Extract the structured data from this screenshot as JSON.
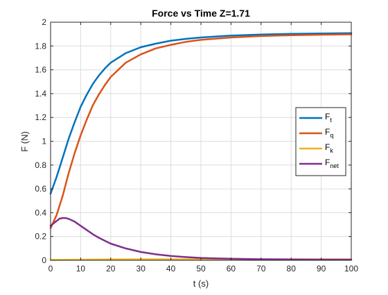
{
  "chart_data": {
    "type": "line",
    "title": "Force vs Time Z=1.71",
    "xlabel": "t (s)",
    "ylabel": "F (N)",
    "xlim": [
      0,
      100
    ],
    "ylim": [
      0,
      2
    ],
    "xticks": [
      0,
      10,
      20,
      30,
      40,
      50,
      60,
      70,
      80,
      90,
      100
    ],
    "yticks": [
      0,
      0.2,
      0.4,
      0.6,
      0.8,
      1,
      1.2,
      1.4,
      1.6,
      1.8,
      2
    ],
    "grid": true,
    "legend_position": "right",
    "series": [
      {
        "name": "F",
        "subscript": "t",
        "color": "#0072BD",
        "x": [
          0,
          2,
          4,
          6,
          8,
          10,
          12,
          14,
          16,
          18,
          20,
          25,
          30,
          35,
          40,
          45,
          50,
          60,
          70,
          80,
          90,
          100
        ],
        "y": [
          0.56,
          0.7,
          0.86,
          1.02,
          1.16,
          1.29,
          1.39,
          1.48,
          1.55,
          1.61,
          1.66,
          1.74,
          1.79,
          1.82,
          1.845,
          1.86,
          1.872,
          1.888,
          1.897,
          1.902,
          1.905,
          1.908
        ]
      },
      {
        "name": "F",
        "subscript": "q",
        "color": "#D95319",
        "x": [
          0,
          2,
          4,
          6,
          8,
          10,
          12,
          14,
          16,
          18,
          20,
          25,
          30,
          35,
          40,
          45,
          50,
          60,
          70,
          80,
          90,
          100
        ],
        "y": [
          0.27,
          0.38,
          0.54,
          0.73,
          0.9,
          1.05,
          1.18,
          1.3,
          1.39,
          1.47,
          1.54,
          1.66,
          1.73,
          1.78,
          1.81,
          1.835,
          1.852,
          1.872,
          1.884,
          1.891,
          1.895,
          1.898
        ]
      },
      {
        "name": "F",
        "subscript": "k",
        "color": "#EDB120",
        "x": [
          0,
          10,
          20,
          30,
          40,
          50,
          60,
          70,
          80,
          90,
          100
        ],
        "y": [
          0.003,
          0.005,
          0.007,
          0.008,
          0.008,
          0.008,
          0.008,
          0.008,
          0.008,
          0.008,
          0.008
        ]
      },
      {
        "name": "F",
        "subscript": "net",
        "color": "#7E2F8E",
        "x": [
          0,
          1,
          2,
          3,
          4,
          5,
          6,
          8,
          10,
          12,
          14,
          16,
          18,
          20,
          25,
          30,
          35,
          40,
          45,
          50,
          55,
          60,
          70,
          80,
          90,
          100
        ],
        "y": [
          0.29,
          0.31,
          0.33,
          0.35,
          0.355,
          0.355,
          0.348,
          0.325,
          0.29,
          0.255,
          0.22,
          0.19,
          0.165,
          0.14,
          0.1,
          0.07,
          0.05,
          0.036,
          0.027,
          0.02,
          0.016,
          0.013,
          0.009,
          0.007,
          0.006,
          0.005
        ]
      }
    ]
  }
}
